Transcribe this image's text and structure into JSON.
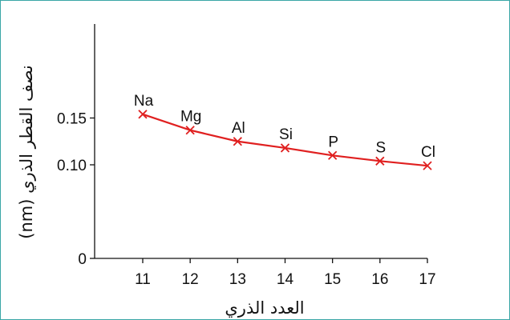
{
  "chart_data": {
    "type": "line",
    "xlabel": "العدد الذري",
    "ylabel": "نصف القطر الذري (nm)",
    "x": [
      11,
      12,
      13,
      14,
      15,
      16,
      17
    ],
    "y": [
      0.154,
      0.137,
      0.125,
      0.118,
      0.11,
      0.104,
      0.099
    ],
    "point_labels": [
      "Na",
      "Mg",
      "Al",
      "Si",
      "P",
      "S",
      "Cl"
    ],
    "xticks": [
      "11",
      "12",
      "13",
      "14",
      "15",
      "16",
      "17"
    ],
    "yticks": [
      {
        "value": 0,
        "label": "0"
      },
      {
        "value": 0.1,
        "label": "0.10"
      },
      {
        "value": 0.15,
        "label": "0.15"
      }
    ],
    "xlim": [
      10,
      17
    ],
    "ylim": [
      0,
      0.175
    ],
    "grid": false,
    "line_color": "#e02020",
    "marker": "x",
    "frame_color": "#3aa6a6"
  }
}
